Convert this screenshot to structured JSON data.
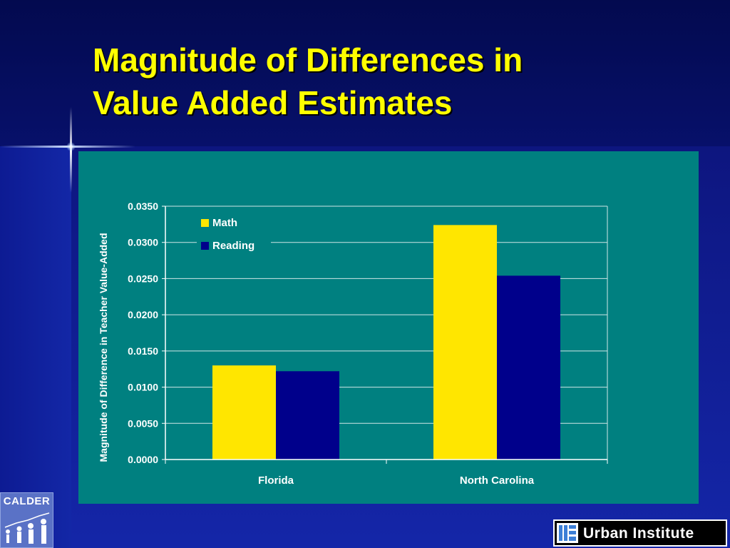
{
  "slide": {
    "title_line1": "Magnitude of Differences in",
    "title_line2": "Value Added Estimates"
  },
  "logos": {
    "calder": "CALDER",
    "urban": "Urban Institute"
  },
  "colors": {
    "title": "#ffff00",
    "chart_background": "#008080",
    "math": "#ffe600",
    "reading": "#00008b"
  },
  "chart_data": {
    "type": "bar",
    "categories": [
      "Florida",
      "North Carolina"
    ],
    "series": [
      {
        "name": "Math",
        "values": [
          0.013,
          0.0324
        ],
        "color": "#ffe600"
      },
      {
        "name": "Reading",
        "values": [
          0.0122,
          0.0254
        ],
        "color": "#00008b"
      }
    ],
    "title": "",
    "xlabel": "",
    "ylabel": "Magnitude of Difference in Teacher Value-Added",
    "ylim": [
      0,
      0.035
    ],
    "yticks": [
      "0.0000",
      "0.0050",
      "0.0100",
      "0.0150",
      "0.0200",
      "0.0250",
      "0.0300",
      "0.0350"
    ],
    "grid": true,
    "legend": "top-left"
  }
}
